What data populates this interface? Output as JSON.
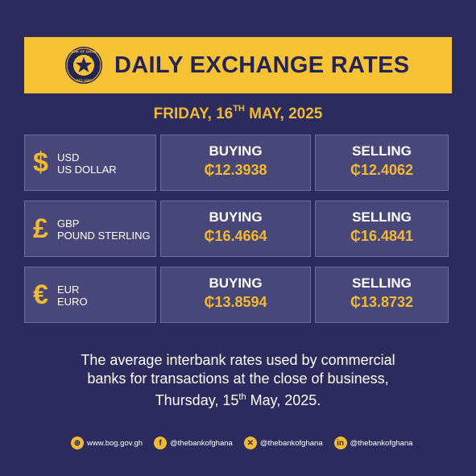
{
  "header": {
    "title": "DAILY EXCHANGE RATES",
    "seal_text": "BANK OF GHANA",
    "seal_est": "EST. 1957"
  },
  "date": {
    "prefix": "FRIDAY, 16",
    "ordinal": "TH",
    "suffix": " MAY, 2025"
  },
  "currencies": [
    {
      "symbol": "$",
      "code": "USD",
      "name": "US DOLLAR",
      "buying_label": "BUYING",
      "buying": "₵12.3938",
      "selling_label": "SELLING",
      "selling": "₵12.4062"
    },
    {
      "symbol": "£",
      "code": "GBP",
      "name": "POUND STERLING",
      "buying_label": "BUYING",
      "buying": "₵16.4664",
      "selling_label": "SELLING",
      "selling": "₵16.4841"
    },
    {
      "symbol": "€",
      "code": "EUR",
      "name": "EURO",
      "buying_label": "BUYING",
      "buying": "₵13.8594",
      "selling_label": "SELLING",
      "selling": "₵13.8732"
    }
  ],
  "note": {
    "line1": "The average interbank rates used by commercial",
    "line2": "banks for transactions at the close of business,",
    "line3_prefix": "Thursday, 15",
    "line3_ordinal": "th",
    "line3_suffix": " May, 2025."
  },
  "footer": [
    {
      "icon": "globe-icon",
      "text": "www.bog.gov.gh"
    },
    {
      "icon": "facebook-icon",
      "text": "@thebankofghana"
    },
    {
      "icon": "x-icon",
      "text": "@thebankofghana"
    },
    {
      "icon": "linkedin-icon",
      "text": "@thebankofghana"
    }
  ],
  "colors": {
    "background": "#2b2b5e",
    "accent": "#f2b933",
    "banner": "#f7c234",
    "cell": "#48477a"
  }
}
